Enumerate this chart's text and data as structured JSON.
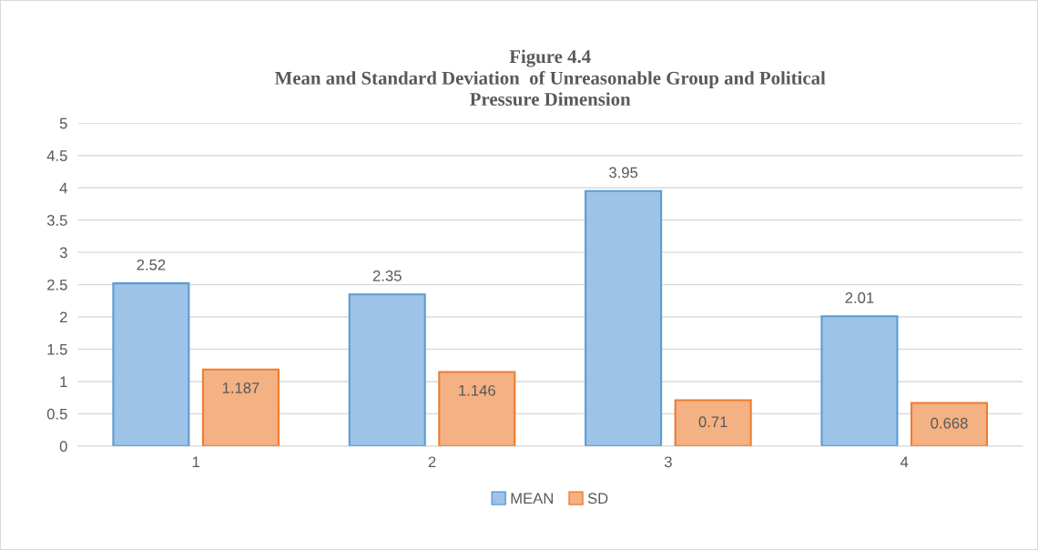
{
  "chart_data": {
    "type": "bar",
    "title": "Figure 4.4\nMean and Standard Deviation  of Unreasonable Group and Political\nPressure Dimension",
    "categories": [
      "1",
      "2",
      "3",
      "4"
    ],
    "series": [
      {
        "name": "MEAN",
        "color": "#9dc3e6",
        "values": [
          2.52,
          2.35,
          3.95,
          2.01
        ]
      },
      {
        "name": "SD",
        "color": "#f4b183",
        "values": [
          1.187,
          1.146,
          0.71,
          0.668
        ]
      }
    ],
    "ylim": [
      0,
      5
    ],
    "yticks": [
      0,
      0.5,
      1,
      1.5,
      2,
      2.5,
      3,
      3.5,
      4,
      4.5,
      5
    ],
    "grid": "y",
    "legend": "bottom",
    "data_labels": true
  }
}
